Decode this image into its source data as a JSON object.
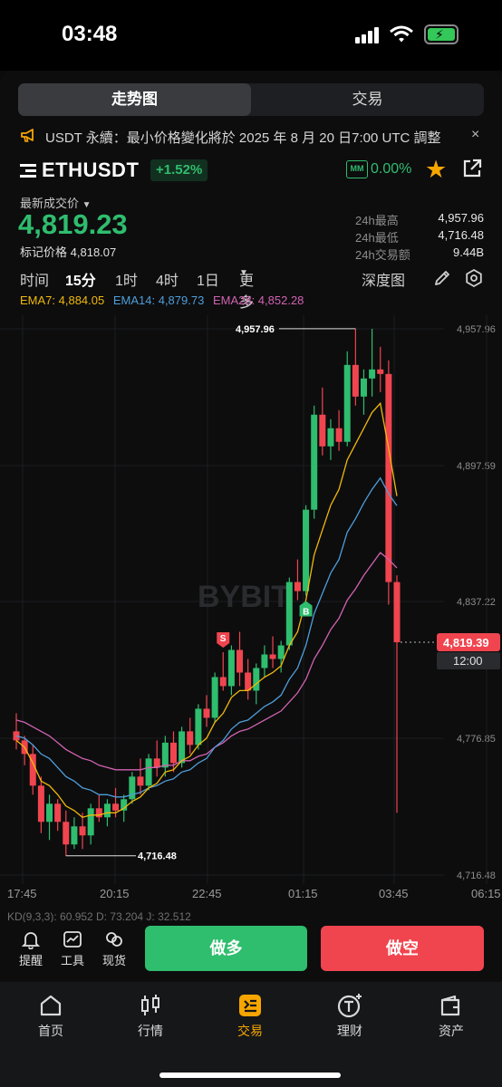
{
  "status_bar": {
    "time": "03:48"
  },
  "top_tabs": [
    "走势图",
    "交易"
  ],
  "notice": {
    "text": "USDT 永續：最小价格變化將於 2025 年 8 月 20 日7:00 UTC 調整",
    "close": "×"
  },
  "symbol": {
    "name": "ETHUSDT",
    "change": "+1.52%",
    "mm_label": "MM",
    "mm_value": "0.00%"
  },
  "ticker": {
    "last_label": "最新成交价",
    "last_price": "4,819.23",
    "mark_price_label": "标记价格",
    "mark_price": "4,818.07",
    "stats": [
      {
        "label": "24h最高",
        "value": "4,957.96"
      },
      {
        "label": "24h最低",
        "value": "4,716.48"
      },
      {
        "label": "24h交易额",
        "value": "9.44B"
      }
    ]
  },
  "intervals": {
    "items": [
      "时间",
      "15分",
      "1时",
      "4时",
      "1日",
      "更多"
    ],
    "active": "15分",
    "depth": "深度图"
  },
  "ema": [
    {
      "label": "EMA7: 4,884.05",
      "color": "#f0b90b"
    },
    {
      "label": "EMA14: 4,879.73",
      "color": "#4f9ed9"
    },
    {
      "label": "EMA28: 4,852.28",
      "color": "#d163b0"
    }
  ],
  "chart_data": {
    "type": "candlestick",
    "watermark": "BYBIT",
    "y_ticks": [
      "4,957.96",
      "4,897.59",
      "4,837.22",
      "4,776.85",
      "4,716.48"
    ],
    "x_ticks": [
      "17:45",
      "20:15",
      "22:45",
      "01:15",
      "03:45",
      "06:15"
    ],
    "ylim": [
      4716.48,
      4957.96
    ],
    "high_label": "4,957.96",
    "low_label": "4,716.48",
    "current_price": "4,819.39",
    "countdown": "12:00",
    "markers": [
      {
        "label": "S",
        "color": "#f0454f"
      },
      {
        "label": "B",
        "color": "#2fbd6e"
      }
    ],
    "indicator_label": "KD(9,3,3): 60.952  D: 73.204  J: 32.512",
    "candles": [
      [
        4780,
        4788,
        4772,
        4776
      ],
      [
        4776,
        4778,
        4765,
        4770
      ],
      [
        4770,
        4774,
        4752,
        4756
      ],
      [
        4756,
        4760,
        4735,
        4740
      ],
      [
        4740,
        4752,
        4732,
        4748
      ],
      [
        4748,
        4750,
        4736,
        4740
      ],
      [
        4740,
        4745,
        4725,
        4730
      ],
      [
        4730,
        4742,
        4728,
        4738
      ],
      [
        4738,
        4744,
        4728,
        4734
      ],
      [
        4734,
        4748,
        4730,
        4746
      ],
      [
        4746,
        4752,
        4740,
        4742
      ],
      [
        4742,
        4750,
        4738,
        4748
      ],
      [
        4748,
        4755,
        4742,
        4745
      ],
      [
        4745,
        4752,
        4740,
        4750
      ],
      [
        4750,
        4762,
        4748,
        4760
      ],
      [
        4760,
        4768,
        4752,
        4756
      ],
      [
        4756,
        4770,
        4754,
        4768
      ],
      [
        4768,
        4776,
        4760,
        4764
      ],
      [
        4764,
        4778,
        4760,
        4775
      ],
      [
        4775,
        4780,
        4762,
        4766
      ],
      [
        4766,
        4782,
        4764,
        4780
      ],
      [
        4780,
        4786,
        4770,
        4774
      ],
      [
        4774,
        4792,
        4772,
        4790
      ],
      [
        4790,
        4796,
        4782,
        4786
      ],
      [
        4786,
        4806,
        4784,
        4804
      ],
      [
        4804,
        4815,
        4798,
        4800
      ],
      [
        4800,
        4818,
        4796,
        4816
      ],
      [
        4816,
        4824,
        4800,
        4806
      ],
      [
        4806,
        4812,
        4794,
        4798
      ],
      [
        4798,
        4810,
        4792,
        4808
      ],
      [
        4808,
        4818,
        4804,
        4814
      ],
      [
        4814,
        4822,
        4808,
        4812
      ],
      [
        4812,
        4820,
        4806,
        4818
      ],
      [
        4818,
        4848,
        4816,
        4846
      ],
      [
        4846,
        4856,
        4838,
        4842
      ],
      [
        4842,
        4880,
        4840,
        4878
      ],
      [
        4878,
        4924,
        4874,
        4920
      ],
      [
        4920,
        4932,
        4902,
        4906
      ],
      [
        4906,
        4918,
        4900,
        4914
      ],
      [
        4914,
        4922,
        4904,
        4908
      ],
      [
        4908,
        4948,
        4906,
        4942
      ],
      [
        4942,
        4958,
        4924,
        4928
      ],
      [
        4928,
        4940,
        4920,
        4936
      ],
      [
        4936,
        4957.96,
        4928,
        4940
      ],
      [
        4940,
        4950,
        4930,
        4938
      ],
      [
        4938,
        4944,
        4836,
        4846
      ],
      [
        4846,
        4849,
        4744,
        4819.39
      ]
    ],
    "ema_series": {
      "ema7": [
        4776,
        4773,
        4766,
        4758,
        4756,
        4752,
        4747,
        4745,
        4742,
        4743,
        4743,
        4744,
        4744,
        4746,
        4749,
        4751,
        4755,
        4757,
        4762,
        4763,
        4767,
        4769,
        4774,
        4777,
        4784,
        4788,
        4795,
        4798,
        4798,
        4801,
        4804,
        4806,
        4809,
        4818,
        4824,
        4838,
        4858,
        4869,
        4880,
        4887,
        4900,
        4907,
        4914,
        4921,
        4925,
        4905,
        4884.05
      ],
      "ema14": [
        4778,
        4777,
        4774,
        4770,
        4768,
        4764,
        4760,
        4758,
        4755,
        4754,
        4752,
        4752,
        4751,
        4751,
        4752,
        4753,
        4755,
        4756,
        4758,
        4759,
        4762,
        4763,
        4766,
        4768,
        4773,
        4776,
        4781,
        4784,
        4785,
        4788,
        4791,
        4793,
        4796,
        4803,
        4808,
        4818,
        4832,
        4841,
        4850,
        4856,
        4868,
        4874,
        4881,
        4887,
        4892,
        4885,
        4879.73
      ],
      "ema28": [
        4785,
        4784,
        4782,
        4780,
        4778,
        4775,
        4772,
        4770,
        4768,
        4767,
        4765,
        4764,
        4763,
        4763,
        4763,
        4763,
        4764,
        4764,
        4765,
        4765,
        4767,
        4767,
        4769,
        4770,
        4773,
        4775,
        4778,
        4780,
        4781,
        4783,
        4785,
        4787,
        4789,
        4793,
        4797,
        4803,
        4812,
        4818,
        4825,
        4830,
        4838,
        4843,
        4849,
        4854,
        4859,
        4856,
        4852.28
      ]
    }
  },
  "actions": {
    "alerts": "提醒",
    "tools": "工具",
    "spot": "现货",
    "long": "做多",
    "short": "做空"
  },
  "tabbar": [
    "首页",
    "行情",
    "交易",
    "理财",
    "资产"
  ],
  "colors": {
    "up": "#2fbd6e",
    "down": "#f0454f",
    "accent": "#f7a600"
  }
}
